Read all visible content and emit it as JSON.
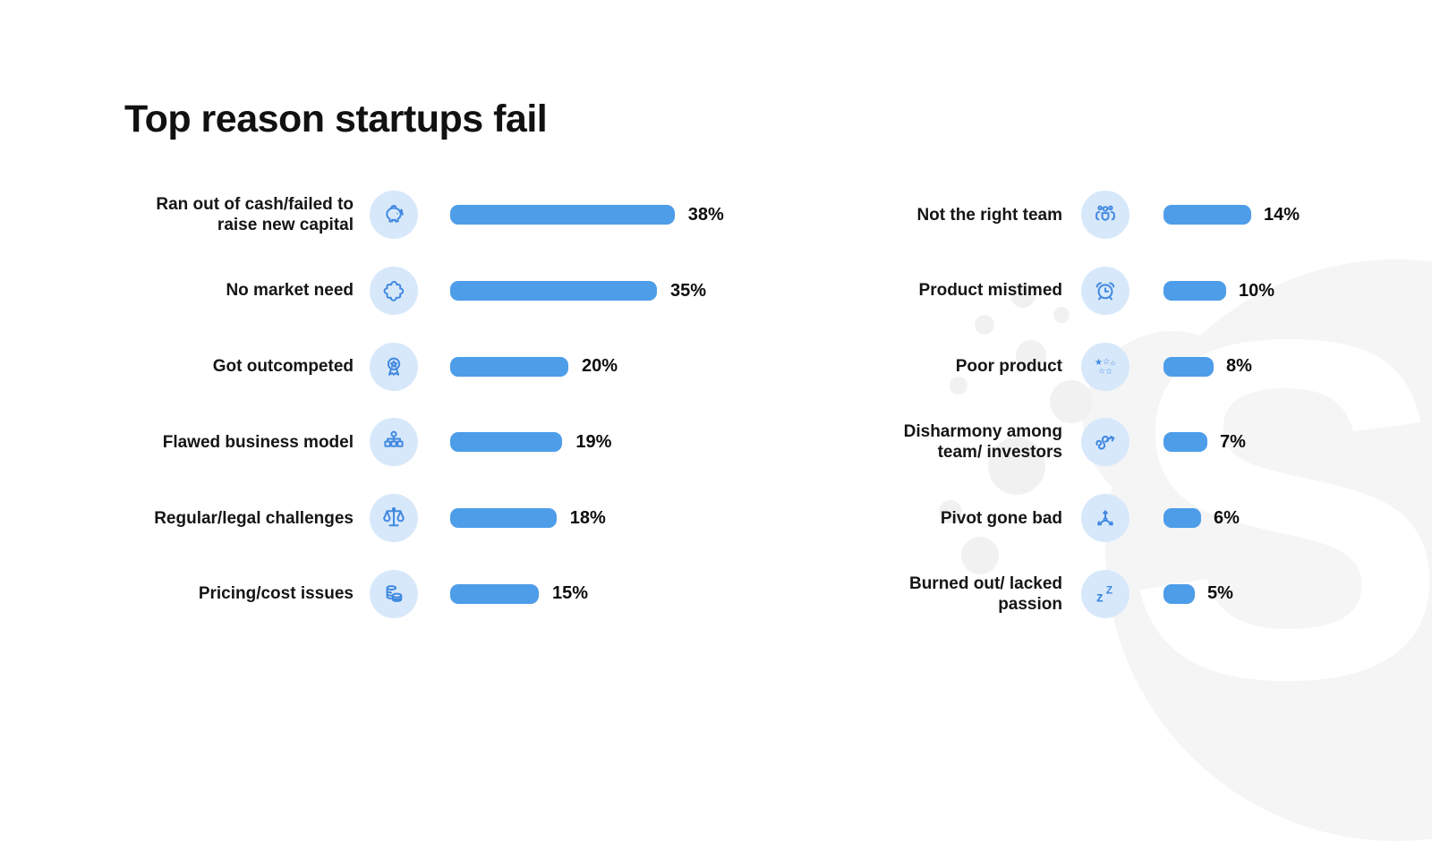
{
  "title": "Top reason startups fail",
  "watermark_letter": "S",
  "colors": {
    "bar": "#4d9de9",
    "icon_stroke": "#4189e0",
    "icon_bg": "#d7e8fb",
    "text": "#141414",
    "background": "#ffffff",
    "watermark": "#f5f5f6",
    "watermark_dots": "#f1f1f2"
  },
  "chart_data": {
    "type": "bar",
    "orientation": "horizontal",
    "title": "Top reason startups fail",
    "unit": "%",
    "value_range": [
      0,
      40
    ],
    "grid": false,
    "legend": false,
    "columns": [
      {
        "name": "left",
        "items": [
          {
            "label": "Ran out of cash/failed to raise new capital",
            "value": 38,
            "display": "38%",
            "icon": "piggy-bank-icon"
          },
          {
            "label": "No market need",
            "value": 35,
            "display": "35%",
            "icon": "puzzle-piece-icon"
          },
          {
            "label": "Got outcompeted",
            "value": 20,
            "display": "20%",
            "icon": "award-medal-icon"
          },
          {
            "label": "Flawed business model",
            "value": 19,
            "display": "19%",
            "icon": "flowchart-icon"
          },
          {
            "label": "Regular/legal challenges",
            "value": 18,
            "display": "18%",
            "icon": "scales-icon"
          },
          {
            "label": "Pricing/cost issues",
            "value": 15,
            "display": "15%",
            "icon": "coins-icon"
          }
        ]
      },
      {
        "name": "right",
        "items": [
          {
            "label": "Not the right team",
            "value": 14,
            "display": "14%",
            "icon": "team-icon"
          },
          {
            "label": "Product mistimed",
            "value": 10,
            "display": "10%",
            "icon": "alarm-clock-icon"
          },
          {
            "label": "Poor product",
            "value": 8,
            "display": "8%",
            "icon": "stars-icon"
          },
          {
            "label": "Disharmony among team/ investors",
            "value": 7,
            "display": "7%",
            "icon": "tangled-arrow-icon"
          },
          {
            "label": "Pivot gone bad",
            "value": 6,
            "display": "6%",
            "icon": "pivot-arrows-icon"
          },
          {
            "label": "Burned out/ lacked passion",
            "value": 5,
            "display": "5%",
            "icon": "sleep-zzz-icon"
          }
        ]
      }
    ]
  }
}
